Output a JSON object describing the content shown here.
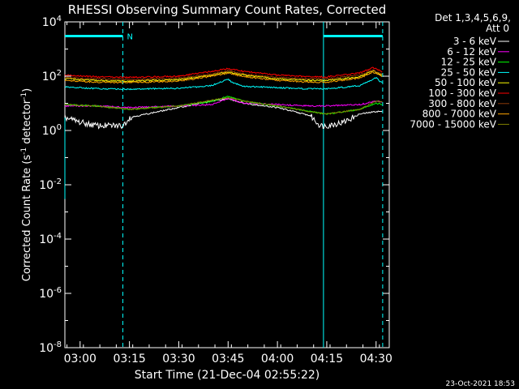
{
  "chart_data": {
    "type": "line",
    "title": "RHESSI Observing Summary Count Rates, Corrected",
    "xlabel": "Start Time (21-Dec-04 02:55:22)",
    "ylabel": "Corrected Count Rate (s⁻¹ detector⁻¹)",
    "ylabel_parts": {
      "main": "Corrected Count Rate (s",
      "exp1": "-1",
      "mid": " detector",
      "exp2": "-1",
      "end": ")"
    },
    "yscale": "log",
    "ylim": [
      1e-08,
      10000
    ],
    "xlim": [
      "02:55:22",
      "04:34:00"
    ],
    "x_ticks": [
      "03:00",
      "03:15",
      "03:30",
      "03:45",
      "04:00",
      "04:15",
      "04:30"
    ],
    "y_ticks": [
      {
        "value": 1e-08,
        "base": "10",
        "exp": "-8"
      },
      {
        "value": 1e-06,
        "base": "10",
        "exp": "-6"
      },
      {
        "value": 0.0001,
        "base": "10",
        "exp": "-4"
      },
      {
        "value": 0.01,
        "base": "10",
        "exp": "-2"
      },
      {
        "value": 1,
        "base": "10",
        "exp": "0"
      },
      {
        "value": 100,
        "base": "10",
        "exp": "2"
      },
      {
        "value": 10000,
        "base": "10",
        "exp": "4"
      }
    ],
    "legend_header": [
      "Det 1,3,4,5,6,9,",
      "Att 0"
    ],
    "legend_position": "right",
    "series": [
      {
        "name": "3 - 6 keV",
        "color": "#ffffff",
        "x": [
          "02:55:22",
          "03:00",
          "03:05",
          "03:10",
          "03:13",
          "03:15",
          "03:20",
          "03:30",
          "03:40",
          "03:45",
          "03:50",
          "04:00",
          "04:10",
          "04:13",
          "04:15",
          "04:20",
          "04:25",
          "04:30",
          "04:32"
        ],
        "values": [
          3,
          2,
          1.5,
          1.5,
          1.5,
          3,
          4,
          7,
          12,
          15,
          10,
          7,
          3.5,
          1.5,
          1.5,
          2,
          4,
          5,
          5
        ]
      },
      {
        "name": "6 - 12 keV",
        "color": "#ff00ff",
        "x": [
          "02:55:22",
          "03:05",
          "03:15",
          "03:30",
          "03:40",
          "03:45",
          "03:50",
          "04:00",
          "04:10",
          "04:15",
          "04:25",
          "04:30",
          "04:32"
        ],
        "values": [
          8,
          8,
          7,
          8,
          9,
          15,
          10,
          9,
          8,
          8,
          9,
          12,
          11
        ]
      },
      {
        "name": "12 - 25 keV",
        "color": "#00ff00",
        "x": [
          "02:55:22",
          "03:05",
          "03:15",
          "03:30",
          "03:40",
          "03:45",
          "03:50",
          "04:00",
          "04:10",
          "04:15",
          "04:25",
          "04:30",
          "04:32"
        ],
        "values": [
          9,
          8,
          6,
          8,
          12,
          18,
          12,
          8,
          5,
          4,
          6,
          10,
          9
        ]
      },
      {
        "name": "25 - 50 keV",
        "color": "#00ffff",
        "x": [
          "02:55:22",
          "03:05",
          "03:15",
          "03:30",
          "03:40",
          "03:44",
          "03:45",
          "03:46",
          "03:50",
          "04:00",
          "04:10",
          "04:15",
          "04:25",
          "04:29",
          "04:30",
          "04:31",
          "04:32"
        ],
        "values": [
          40,
          35,
          33,
          36,
          45,
          70,
          80,
          60,
          42,
          38,
          34,
          34,
          45,
          75,
          90,
          65,
          60
        ]
      },
      {
        "name": "50 - 100 keV",
        "color": "#ffff00",
        "x": [
          "02:55:22",
          "03:05",
          "03:15",
          "03:30",
          "03:40",
          "03:45",
          "03:50",
          "04:00",
          "04:10",
          "04:15",
          "04:25",
          "04:29",
          "04:32"
        ],
        "values": [
          80,
          70,
          65,
          75,
          110,
          140,
          110,
          80,
          70,
          70,
          95,
          160,
          110
        ]
      },
      {
        "name": "100 - 300 keV",
        "color": "#ff0000",
        "x": [
          "02:55:22",
          "03:05",
          "03:15",
          "03:30",
          "03:40",
          "03:45",
          "03:50",
          "04:00",
          "04:10",
          "04:15",
          "04:25",
          "04:29",
          "04:32"
        ],
        "values": [
          110,
          95,
          90,
          100,
          150,
          190,
          150,
          110,
          95,
          95,
          130,
          210,
          150
        ]
      },
      {
        "name": "300 - 800 keV",
        "color": "#8b3a0a",
        "x": [
          "02:55:22",
          "03:05",
          "03:15",
          "03:30",
          "03:40",
          "03:45",
          "03:50",
          "04:00",
          "04:10",
          "04:15",
          "04:25",
          "04:29",
          "04:32"
        ],
        "values": [
          90,
          80,
          75,
          85,
          120,
          160,
          120,
          90,
          80,
          80,
          110,
          170,
          120
        ]
      },
      {
        "name": "800 - 7000 keV",
        "color": "#ffa500",
        "x": [
          "02:55:22",
          "03:05",
          "03:15",
          "03:30",
          "03:40",
          "03:45",
          "03:50",
          "04:00",
          "04:10",
          "04:15",
          "04:25",
          "04:29",
          "04:32"
        ],
        "values": [
          70,
          60,
          58,
          66,
          100,
          130,
          95,
          70,
          60,
          60,
          85,
          140,
          95
        ]
      },
      {
        "name": "7000 - 15000 keV",
        "color": "#808000",
        "x": [
          "02:55:22",
          "03:05",
          "03:15",
          "03:30",
          "03:40",
          "03:45",
          "03:50",
          "04:00",
          "04:10",
          "04:15",
          "04:25",
          "04:30",
          "04:32"
        ],
        "values": [
          9,
          8,
          6,
          8,
          13,
          16,
          12,
          8,
          5,
          4,
          6,
          12,
          11
        ]
      }
    ],
    "annotations": [
      {
        "type": "bar",
        "label": "N",
        "from": "02:55:22",
        "to": "03:13",
        "y": 3000,
        "color": "#00ffff"
      },
      {
        "type": "bar",
        "label": "",
        "from": "04:14",
        "to": "04:32",
        "y": 3000,
        "color": "#00ffff"
      }
    ],
    "markers": [
      {
        "time": "03:13",
        "style": "dashed",
        "color": "#00ffff"
      },
      {
        "time": "04:14",
        "style": "solid",
        "color": "#00ffff"
      },
      {
        "time": "04:32",
        "style": "dashed",
        "color": "#00ffff"
      }
    ]
  },
  "footer": {
    "date": "23-Oct-2021 18:53"
  }
}
